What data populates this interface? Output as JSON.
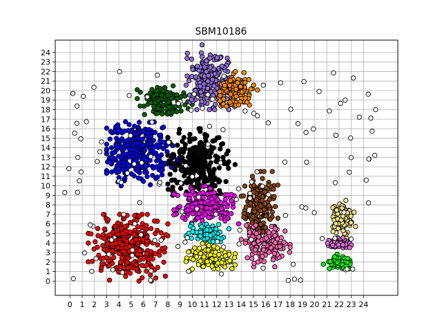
{
  "chart_data": {
    "type": "scatter",
    "title": "SBM10186",
    "xlabel": "",
    "ylabel": "",
    "xlim": [
      -1.2,
      26.8
    ],
    "ylim": [
      -1.5,
      25.3
    ],
    "x_ticks": [
      0,
      1,
      2,
      3,
      4,
      5,
      6,
      7,
      8,
      9,
      10,
      11,
      12,
      13,
      14,
      15,
      16,
      17,
      18,
      19,
      20,
      21,
      22,
      23,
      24
    ],
    "y_ticks": [
      0,
      1,
      2,
      3,
      4,
      5,
      6,
      7,
      8,
      9,
      10,
      11,
      12,
      13,
      14,
      15,
      16,
      17,
      18,
      19,
      20,
      21,
      22,
      23,
      24
    ],
    "grid": true,
    "legend": "none",
    "clusters": [
      {
        "color": "#ff0000",
        "x_range": [
          1.5,
          8
        ],
        "y_range": [
          0,
          7
        ],
        "center": [
          4.8,
          3.6
        ]
      },
      {
        "color": "#0000ff",
        "x_range": [
          3,
          9
        ],
        "y_range": [
          10,
          17.5
        ],
        "center": [
          5.5,
          13.5
        ]
      },
      {
        "color": "#000000",
        "x_range": [
          8,
          13.5
        ],
        "y_range": [
          9,
          16
        ],
        "center": [
          10.5,
          12.5
        ]
      },
      {
        "color": "#006400",
        "x_range": [
          5.5,
          10
        ],
        "y_range": [
          17,
          20.5
        ],
        "center": [
          7.5,
          18.8
        ]
      },
      {
        "color": "#9370db",
        "x_range": [
          9.5,
          14
        ],
        "y_range": [
          18,
          24.8
        ],
        "center": [
          11.5,
          21
        ]
      },
      {
        "color": "#ff8c00",
        "x_range": [
          12.2,
          15.4
        ],
        "y_range": [
          18,
          22
        ],
        "center": [
          13.5,
          20
        ]
      },
      {
        "color": "#ff00ff",
        "x_range": [
          8.5,
          14
        ],
        "y_range": [
          6,
          10
        ],
        "center": [
          11,
          8
        ]
      },
      {
        "color": "#00ffff",
        "x_range": [
          9.5,
          13
        ],
        "y_range": [
          4,
          6
        ],
        "center": [
          11.2,
          5
        ]
      },
      {
        "color": "#ffff00",
        "x_range": [
          9.5,
          13.5
        ],
        "y_range": [
          1,
          4
        ],
        "center": [
          11.5,
          2.5
        ]
      },
      {
        "color": "#8b4513",
        "x_range": [
          14,
          17
        ],
        "y_range": [
          4,
          11.5
        ],
        "center": [
          15.5,
          8
        ]
      },
      {
        "color": "#ff69b4",
        "x_range": [
          14,
          18
        ],
        "y_range": [
          1.5,
          6
        ],
        "center": [
          16,
          4
        ]
      },
      {
        "color": "#f0e68c",
        "x_range": [
          21.5,
          23.5
        ],
        "y_range": [
          4.5,
          8.5
        ],
        "center": [
          22.3,
          6.5
        ]
      },
      {
        "color": "#da70d6",
        "x_range": [
          21,
          23
        ],
        "y_range": [
          3.5,
          5
        ],
        "center": [
          22,
          4
        ]
      },
      {
        "color": "#00ff00",
        "x_range": [
          20.5,
          23
        ],
        "y_range": [
          1.3,
          3
        ],
        "center": [
          22,
          1.8
        ]
      },
      {
        "color": "#ffffff",
        "x_range": [
          -0.5,
          25
        ],
        "y_range": [
          0,
          22
        ],
        "note": "scattered unassigned points"
      }
    ]
  }
}
